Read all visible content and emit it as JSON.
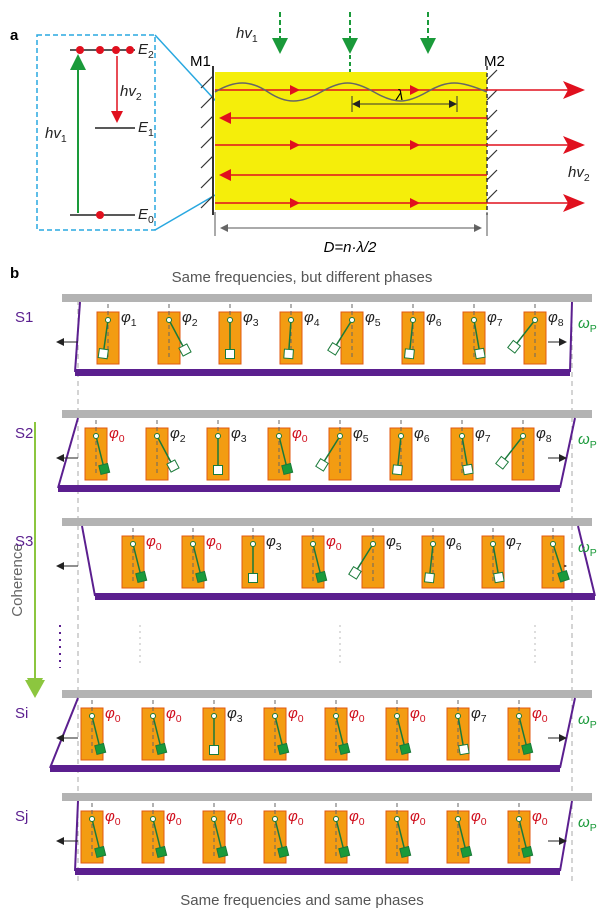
{
  "panel_a": {
    "label": "a",
    "pump_photon": {
      "base": "hv",
      "sub": "1"
    },
    "emitted_photon": {
      "base": "hv",
      "sub": "2"
    },
    "levels": [
      {
        "base": "E",
        "sub": "2"
      },
      {
        "base": "E",
        "sub": "1"
      },
      {
        "base": "E",
        "sub": "0"
      }
    ],
    "mirrors": [
      "M1",
      "M2"
    ],
    "wavelength": "λ",
    "cavity_length": "D=n·λ/2"
  },
  "panel_b": {
    "label": "b",
    "top_caption": "Same frequencies, but different phases",
    "bottom_caption": "Same frequencies and same phases",
    "axis_label": "Coherence",
    "phase_symbol": "φ",
    "omega": {
      "base": "ω",
      "sub": "P"
    },
    "rows": [
      {
        "name": "S1",
        "phases": [
          "1",
          "2",
          "3",
          "4",
          "5",
          "6",
          "7",
          "8"
        ]
      },
      {
        "name": "S2",
        "phases": [
          "0",
          "2",
          "3",
          "0",
          "5",
          "6",
          "7",
          "8"
        ]
      },
      {
        "name": "S3",
        "phases": [
          "0",
          "0",
          "3",
          "0",
          "5",
          "6",
          "7",
          null
        ]
      },
      {
        "name": "Si",
        "phases": [
          "0",
          "0",
          "3",
          "0",
          "0",
          "0",
          "7",
          "0"
        ]
      },
      {
        "name": "Sj",
        "phases": [
          "0",
          "0",
          "0",
          "0",
          "0",
          "0",
          "0",
          "0"
        ]
      }
    ]
  }
}
